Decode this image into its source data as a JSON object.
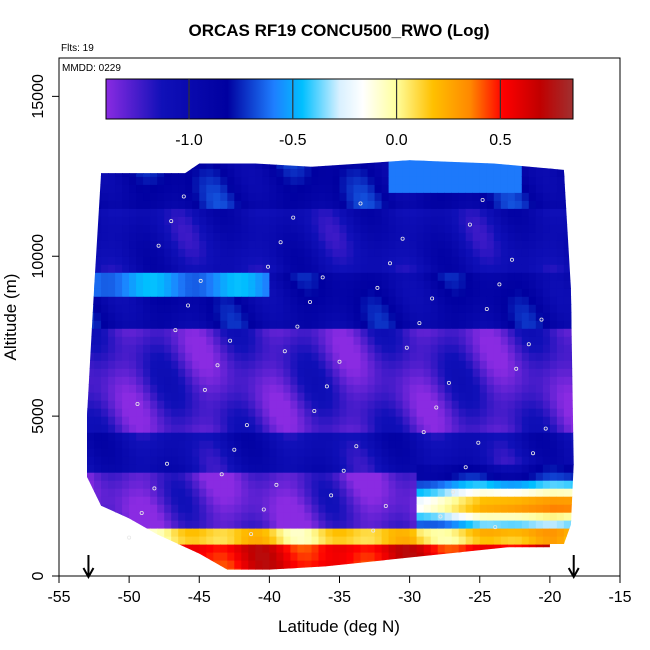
{
  "chart_data": {
    "type": "heatmap",
    "title": "ORCAS RF19 CONCU500_RWO (Log)",
    "xlabel": "Latitude (deg N)",
    "ylabel": "Altitude (m)",
    "xlim": [
      -55,
      -15
    ],
    "ylim": [
      0,
      16200
    ],
    "x_ticks": [
      -55,
      -50,
      -45,
      -40,
      -35,
      -30,
      -25,
      -20,
      -15
    ],
    "y_ticks": [
      0,
      5000,
      10000,
      15000
    ],
    "annotations": {
      "flights": "Flts: 19",
      "date": "MMDD: 0229"
    },
    "colorbar": {
      "range": [
        -1.4,
        0.85
      ],
      "ticks": [
        -1.0,
        -0.5,
        0.0,
        0.5
      ],
      "tick_labels": [
        "-1.0",
        "-0.5",
        "0.0",
        "0.5"
      ],
      "colors": [
        "#8a2be2",
        "#0000b0",
        "#1e90ff",
        "#00bfff",
        "#ffffff",
        "#ffff80",
        "#ffa500",
        "#ff0000",
        "#a52a2a"
      ]
    },
    "markers": [
      {
        "x": -52.9,
        "label": "down-arrow"
      },
      {
        "x": -18.3,
        "label": "down-arrow"
      }
    ],
    "domain_outline_lat": [
      -52,
      -46,
      -45,
      -41,
      -37,
      -30,
      -24,
      -19,
      -18.5,
      -18.3,
      -18.5,
      -19,
      -20,
      -20,
      -23,
      -36,
      -40,
      -43,
      -45,
      -48,
      -50,
      -52,
      -53,
      -53,
      -52.5,
      -52
    ],
    "domain_outline_alt": [
      12600,
      12600,
      12900,
      12900,
      12800,
      13000,
      12900,
      12700,
      9000,
      3500,
      1600,
      1000,
      1000,
      900,
      900,
      300,
      200,
      200,
      700,
      1300,
      1800,
      2200,
      3100,
      5000,
      9000,
      12600
    ],
    "bands": [
      {
        "alt_min": 0,
        "alt_max": 900,
        "value": 0.55
      },
      {
        "alt_min": 900,
        "alt_max": 1600,
        "value": 0.1
      },
      {
        "alt_min": 1600,
        "alt_max": 3300,
        "value": -1.3
      },
      {
        "alt_min": 3300,
        "alt_max": 4600,
        "value": -1.05
      },
      {
        "alt_min": 4600,
        "alt_max": 7800,
        "value": -1.25
      },
      {
        "alt_min": 7800,
        "alt_max": 9600,
        "value": -0.9
      },
      {
        "alt_min": 9600,
        "alt_max": 11500,
        "value": -1.05
      },
      {
        "alt_min": 11500,
        "alt_max": 13000,
        "value": -0.85
      }
    ],
    "lat_gradient_low_alt": [
      {
        "lat": -30,
        "value": -0.1
      },
      {
        "lat": -25,
        "value": 0.35
      },
      {
        "lat": -20,
        "value": 0.5
      }
    ]
  }
}
